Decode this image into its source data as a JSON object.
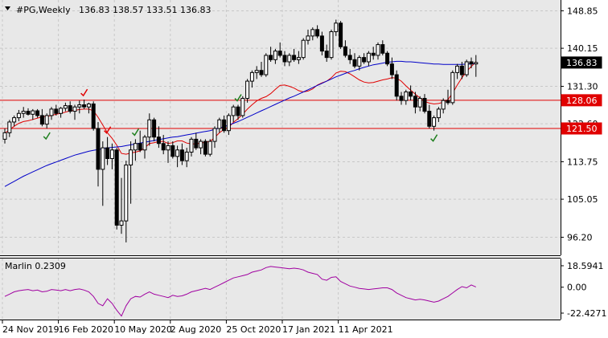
{
  "header": {
    "symbol": "#PG,Weekly",
    "ohlc": "136.83 138.57 133.51 136.83"
  },
  "price_axis": {
    "labels": [
      "148.85",
      "140.15",
      "131.30",
      "122.60",
      "113.75",
      "105.05",
      "96.20"
    ]
  },
  "price_tags": {
    "current": "136.83",
    "level_upper": "128.06",
    "level_lower": "121.50"
  },
  "indicator": {
    "label": "Marlin 0.2309",
    "axis": [
      "18.5941",
      "0.00",
      "-22.4271"
    ]
  },
  "time_axis": {
    "labels": [
      "24 Nov 2019",
      "16 Feb 2020",
      "10 May 2020",
      "2 Aug 2020",
      "25 Oct 2020",
      "17 Jan 2021",
      "11 Apr 2021"
    ]
  },
  "colors": {
    "background": "#ffffff",
    "panel": "#e8e8e8",
    "grid": "#c8c8c8",
    "candle": "#000000",
    "ma_fast": "#e00000",
    "ma_slow": "#0000c8",
    "level_line": "#e00000",
    "oscillator": "#a000a0",
    "tick_red": "#e00000",
    "tick_green": "#208020"
  },
  "chart_data": {
    "type": "candlestick",
    "symbol": "#PG",
    "timeframe": "Weekly",
    "ylim": [
      92,
      151
    ],
    "horizontal_levels": [
      128.06,
      121.5
    ],
    "current_price": 136.83,
    "candles": [
      [
        119.0,
        121.5,
        118.0,
        120.5
      ],
      [
        120.5,
        123.5,
        119.5,
        123.0
      ],
      [
        123.0,
        124.5,
        122.0,
        124.0
      ],
      [
        124.0,
        125.8,
        123.2,
        125.0
      ],
      [
        125.0,
        126.5,
        124.0,
        125.5
      ],
      [
        125.5,
        126.2,
        124.5,
        124.8
      ],
      [
        124.8,
        126.0,
        123.5,
        125.6
      ],
      [
        125.6,
        126.0,
        124.0,
        124.5
      ],
      [
        124.5,
        126.0,
        122.0,
        122.5
      ],
      [
        122.5,
        125.0,
        121.5,
        124.5
      ],
      [
        124.5,
        126.5,
        123.5,
        126.0
      ],
      [
        126.0,
        127.0,
        124.5,
        125.0
      ],
      [
        125.0,
        126.5,
        124.0,
        126.2
      ],
      [
        126.2,
        127.5,
        125.5,
        126.8
      ],
      [
        126.8,
        127.8,
        125.0,
        125.5
      ],
      [
        125.5,
        127.0,
        123.5,
        126.5
      ],
      [
        126.5,
        128.0,
        125.0,
        127.0
      ],
      [
        127.0,
        128.2,
        126.0,
        126.5
      ],
      [
        126.5,
        127.5,
        125.0,
        127.2
      ],
      [
        127.2,
        127.8,
        121.0,
        121.5
      ],
      [
        121.5,
        123.0,
        108.0,
        112.0
      ],
      [
        112.0,
        118.5,
        103.5,
        117.0
      ],
      [
        117.0,
        119.5,
        113.0,
        114.5
      ],
      [
        114.5,
        118.0,
        112.0,
        116.5
      ],
      [
        116.5,
        117.0,
        98.0,
        99.0
      ],
      [
        99.0,
        110.0,
        97.0,
        100.0
      ],
      [
        100.0,
        114.0,
        95.0,
        113.0
      ],
      [
        113.0,
        118.5,
        104.0,
        116.5
      ],
      [
        116.5,
        119.0,
        114.0,
        118.0
      ],
      [
        118.0,
        121.0,
        116.0,
        116.5
      ],
      [
        116.5,
        120.0,
        114.5,
        119.5
      ],
      [
        119.5,
        125.0,
        117.5,
        123.5
      ],
      [
        123.5,
        124.0,
        118.5,
        119.5
      ],
      [
        119.5,
        122.0,
        117.0,
        118.0
      ],
      [
        118.0,
        120.0,
        115.5,
        116.5
      ],
      [
        116.5,
        118.5,
        113.5,
        117.5
      ],
      [
        117.5,
        118.5,
        114.5,
        115.0
      ],
      [
        115.0,
        117.5,
        112.5,
        116.5
      ],
      [
        116.5,
        118.0,
        113.0,
        114.0
      ],
      [
        114.0,
        117.0,
        112.5,
        116.0
      ],
      [
        116.0,
        119.5,
        115.0,
        119.0
      ],
      [
        119.0,
        120.5,
        116.5,
        117.0
      ],
      [
        117.0,
        119.0,
        115.5,
        118.5
      ],
      [
        118.5,
        119.0,
        115.0,
        115.5
      ],
      [
        115.5,
        119.0,
        115.0,
        118.5
      ],
      [
        118.5,
        122.0,
        117.0,
        121.5
      ],
      [
        121.5,
        124.0,
        120.5,
        123.5
      ],
      [
        123.5,
        124.5,
        120.5,
        121.0
      ],
      [
        121.0,
        125.0,
        120.0,
        124.5
      ],
      [
        124.5,
        127.0,
        123.0,
        126.5
      ],
      [
        126.5,
        127.0,
        123.5,
        124.5
      ],
      [
        124.5,
        129.0,
        124.0,
        128.5
      ],
      [
        128.5,
        133.0,
        127.5,
        132.5
      ],
      [
        132.5,
        135.0,
        131.0,
        134.5
      ],
      [
        134.5,
        136.0,
        133.0,
        135.0
      ],
      [
        135.0,
        137.0,
        133.5,
        134.0
      ],
      [
        134.0,
        139.0,
        133.5,
        138.5
      ],
      [
        138.5,
        140.5,
        137.0,
        137.5
      ],
      [
        137.5,
        140.0,
        136.5,
        139.5
      ],
      [
        139.5,
        141.5,
        138.0,
        138.5
      ],
      [
        138.5,
        139.5,
        136.0,
        137.0
      ],
      [
        137.0,
        139.0,
        136.0,
        138.5
      ],
      [
        138.5,
        140.0,
        137.0,
        137.5
      ],
      [
        137.5,
        139.5,
        136.5,
        138.0
      ],
      [
        138.0,
        142.5,
        137.5,
        142.0
      ],
      [
        142.0,
        144.5,
        141.0,
        143.0
      ],
      [
        143.0,
        145.0,
        142.0,
        144.5
      ],
      [
        144.5,
        145.5,
        142.5,
        143.0
      ],
      [
        143.0,
        144.0,
        138.5,
        139.5
      ],
      [
        139.5,
        141.0,
        137.0,
        138.0
      ],
      [
        138.0,
        144.5,
        137.5,
        144.0
      ],
      [
        144.0,
        146.8,
        143.0,
        146.0
      ],
      [
        146.0,
        146.5,
        140.0,
        140.5
      ],
      [
        140.5,
        142.0,
        138.0,
        138.5
      ],
      [
        138.5,
        140.0,
        136.5,
        137.5
      ],
      [
        137.5,
        139.0,
        135.5,
        136.0
      ],
      [
        136.0,
        138.5,
        135.0,
        138.0
      ],
      [
        138.0,
        139.0,
        136.5,
        137.0
      ],
      [
        137.0,
        139.5,
        136.0,
        139.0
      ],
      [
        139.0,
        140.5,
        137.5,
        138.5
      ],
      [
        138.5,
        141.5,
        137.5,
        141.0
      ],
      [
        141.0,
        142.0,
        138.5,
        139.0
      ],
      [
        139.0,
        139.5,
        136.0,
        136.5
      ],
      [
        136.5,
        138.0,
        133.0,
        134.0
      ],
      [
        134.0,
        135.0,
        128.0,
        129.0
      ],
      [
        129.0,
        130.0,
        127.0,
        128.0
      ],
      [
        128.0,
        130.5,
        127.0,
        130.0
      ],
      [
        130.0,
        131.5,
        128.0,
        129.0
      ],
      [
        129.0,
        130.0,
        125.0,
        126.5
      ],
      [
        126.5,
        129.0,
        125.5,
        128.5
      ],
      [
        128.5,
        129.5,
        125.0,
        125.5
      ],
      [
        125.5,
        127.0,
        121.5,
        122.0
      ],
      [
        122.0,
        124.5,
        121.0,
        124.0
      ],
      [
        124.0,
        126.5,
        123.0,
        126.0
      ],
      [
        126.0,
        128.5,
        125.0,
        128.0
      ],
      [
        128.0,
        130.5,
        127.0,
        127.5
      ],
      [
        127.5,
        135.0,
        127.0,
        134.5
      ],
      [
        134.5,
        136.5,
        133.0,
        136.0
      ],
      [
        136.0,
        137.0,
        133.0,
        134.0
      ],
      [
        134.0,
        137.5,
        133.5,
        137.0
      ],
      [
        137.0,
        138.0,
        135.5,
        136.5
      ],
      [
        136.5,
        138.57,
        133.51,
        136.83
      ]
    ],
    "moving_averages": [
      {
        "name": "fast",
        "color": "#e00000",
        "values": [
          120.4,
          121.2,
          122.0,
          122.7,
          123.1,
          123.3,
          123.6,
          123.9,
          124.2,
          124.3,
          124.5,
          124.8,
          125.0,
          125.3,
          125.6,
          125.7,
          125.9,
          126.0,
          126.0,
          125.6,
          124.1,
          122.3,
          120.5,
          119.2,
          117.6,
          115.7,
          115.5,
          115.8,
          116.0,
          116.3,
          117.0,
          118.0,
          118.2,
          118.5,
          118.5,
          118.0,
          118.2,
          118.6,
          118.6,
          118.1,
          117.9,
          117.9,
          118.1,
          118.3,
          118.5,
          119.4,
          120.5,
          121.3,
          121.8,
          122.9,
          123.8,
          124.8,
          126.0,
          127.0,
          127.9,
          128.5,
          128.9,
          129.6,
          130.6,
          131.5,
          131.6,
          131.3,
          130.9,
          130.3,
          130.0,
          130.2,
          130.7,
          131.6,
          132.1,
          132.5,
          133.3,
          134.4,
          134.8,
          134.7,
          134.2,
          133.5,
          132.8,
          132.3,
          132.1,
          132.2,
          132.5,
          132.8,
          133.0,
          133.3,
          133.2,
          132.5,
          131.4,
          130.4,
          129.5,
          128.6,
          127.8,
          127.4,
          127.2,
          127.3,
          127.6,
          128.2,
          129.7,
          131.6,
          133.3,
          134.8,
          135.9,
          137.0
        ]
      },
      {
        "name": "slow",
        "color": "#0000c8",
        "values": [
          108.0,
          108.6,
          109.2,
          109.8,
          110.4,
          110.9,
          111.4,
          111.9,
          112.4,
          112.9,
          113.3,
          113.7,
          114.1,
          114.5,
          114.9,
          115.3,
          115.6,
          115.9,
          116.2,
          116.4,
          116.6,
          116.8,
          117.0,
          117.1,
          117.2,
          117.3,
          117.5,
          117.7,
          117.9,
          118.1,
          118.3,
          118.5,
          118.7,
          118.9,
          119.1,
          119.3,
          119.5,
          119.6,
          119.8,
          120.0,
          120.2,
          120.4,
          120.6,
          120.8,
          121.0,
          121.3,
          121.6,
          121.9,
          122.3,
          122.7,
          123.1,
          123.6,
          124.1,
          124.6,
          125.1,
          125.6,
          126.1,
          126.6,
          127.1,
          127.6,
          128.1,
          128.6,
          129.0,
          129.5,
          130.0,
          130.5,
          131.0,
          131.5,
          132.0,
          132.5,
          133.0,
          133.5,
          133.9,
          134.3,
          134.7,
          135.0,
          135.4,
          135.7,
          136.0,
          136.3,
          136.5,
          136.7,
          136.9,
          137.0,
          137.1,
          137.1,
          137.0,
          137.0,
          136.9,
          136.8,
          136.7,
          136.6,
          136.5,
          136.5,
          136.4,
          136.4,
          136.4,
          136.4,
          136.4,
          136.5,
          136.5,
          136.6
        ]
      }
    ],
    "tick_marks": [
      {
        "index": 9,
        "color": "#208020",
        "position": "below"
      },
      {
        "index": 17,
        "color": "#e00000",
        "position": "above"
      },
      {
        "index": 22,
        "color": "#e00000",
        "position": "above"
      },
      {
        "index": 28,
        "color": "#208020",
        "position": "above"
      },
      {
        "index": 50,
        "color": "#208020",
        "position": "above"
      },
      {
        "index": 92,
        "color": "#208020",
        "position": "below"
      }
    ],
    "oscillator": {
      "name": "Marlin",
      "last_value": 0.2309,
      "ylim": [
        -22.4271,
        18.5941
      ],
      "values": [
        -8.0,
        -6.0,
        -4.0,
        -3.0,
        -2.5,
        -2.0,
        -3.0,
        -2.5,
        -4.0,
        -3.5,
        -2.0,
        -2.5,
        -3.0,
        -2.0,
        -3.0,
        -2.0,
        -1.5,
        -2.5,
        -4.0,
        -8.0,
        -14.0,
        -16.0,
        -10.0,
        -14.0,
        -20.0,
        -25.0,
        -16.0,
        -10.0,
        -8.0,
        -8.5,
        -6.0,
        -4.0,
        -6.0,
        -7.0,
        -8.0,
        -9.0,
        -7.0,
        -8.0,
        -7.5,
        -6.0,
        -4.0,
        -3.0,
        -2.0,
        -1.0,
        -2.0,
        0.0,
        2.0,
        4.0,
        6.0,
        8.0,
        9.0,
        10.0,
        11.0,
        13.0,
        14.0,
        15.0,
        17.0,
        18.0,
        17.5,
        17.0,
        16.5,
        16.0,
        16.5,
        16.0,
        15.0,
        13.0,
        12.0,
        11.0,
        7.0,
        6.0,
        8.5,
        9.0,
        5.0,
        3.0,
        1.0,
        0.0,
        -1.0,
        -1.5,
        -2.0,
        -1.5,
        -1.0,
        -0.5,
        -0.5,
        -2.0,
        -5.0,
        -7.0,
        -9.0,
        -10.0,
        -11.0,
        -10.5,
        -11.0,
        -12.0,
        -13.0,
        -12.0,
        -10.0,
        -8.0,
        -5.0,
        -2.0,
        0.5,
        -0.5,
        2.0,
        0.2309
      ]
    },
    "x_tick_labels": [
      "24 Nov 2019",
      "16 Feb 2020",
      "10 May 2020",
      "2 Aug 2020",
      "25 Oct 2020",
      "17 Jan 2021",
      "11 Apr 2021"
    ]
  }
}
